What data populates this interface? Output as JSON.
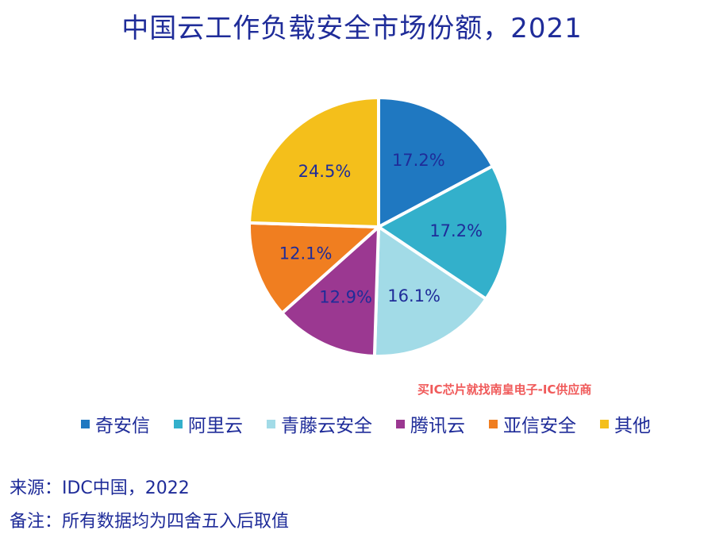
{
  "title": "中国云工作负载安全市场份额，2021",
  "watermark": "买IC芯片就找南皇电子-IC供应商",
  "source": "来源：IDC中国，2022",
  "remark": "备注：所有数据均为四舍五入后取值",
  "chart_data": {
    "type": "pie",
    "title": "中国云工作负载安全市场份额，2021",
    "categories": [
      "奇安信",
      "阿里云",
      "青藤云安全",
      "腾讯云",
      "亚信安全",
      "其他"
    ],
    "values": [
      17.2,
      17.2,
      16.1,
      12.9,
      12.1,
      24.5
    ],
    "labels": [
      "17.2%",
      "17.2%",
      "16.1%",
      "12.9%",
      "12.1%",
      "24.5%"
    ],
    "colors": [
      "#1f78c1",
      "#33b0cb",
      "#a2dbe7",
      "#9b3891",
      "#f07e20",
      "#f4bf1b"
    ],
    "label_color": "#1f2c99",
    "legend_position": "bottom",
    "start": "12 o'clock, clockwise"
  }
}
